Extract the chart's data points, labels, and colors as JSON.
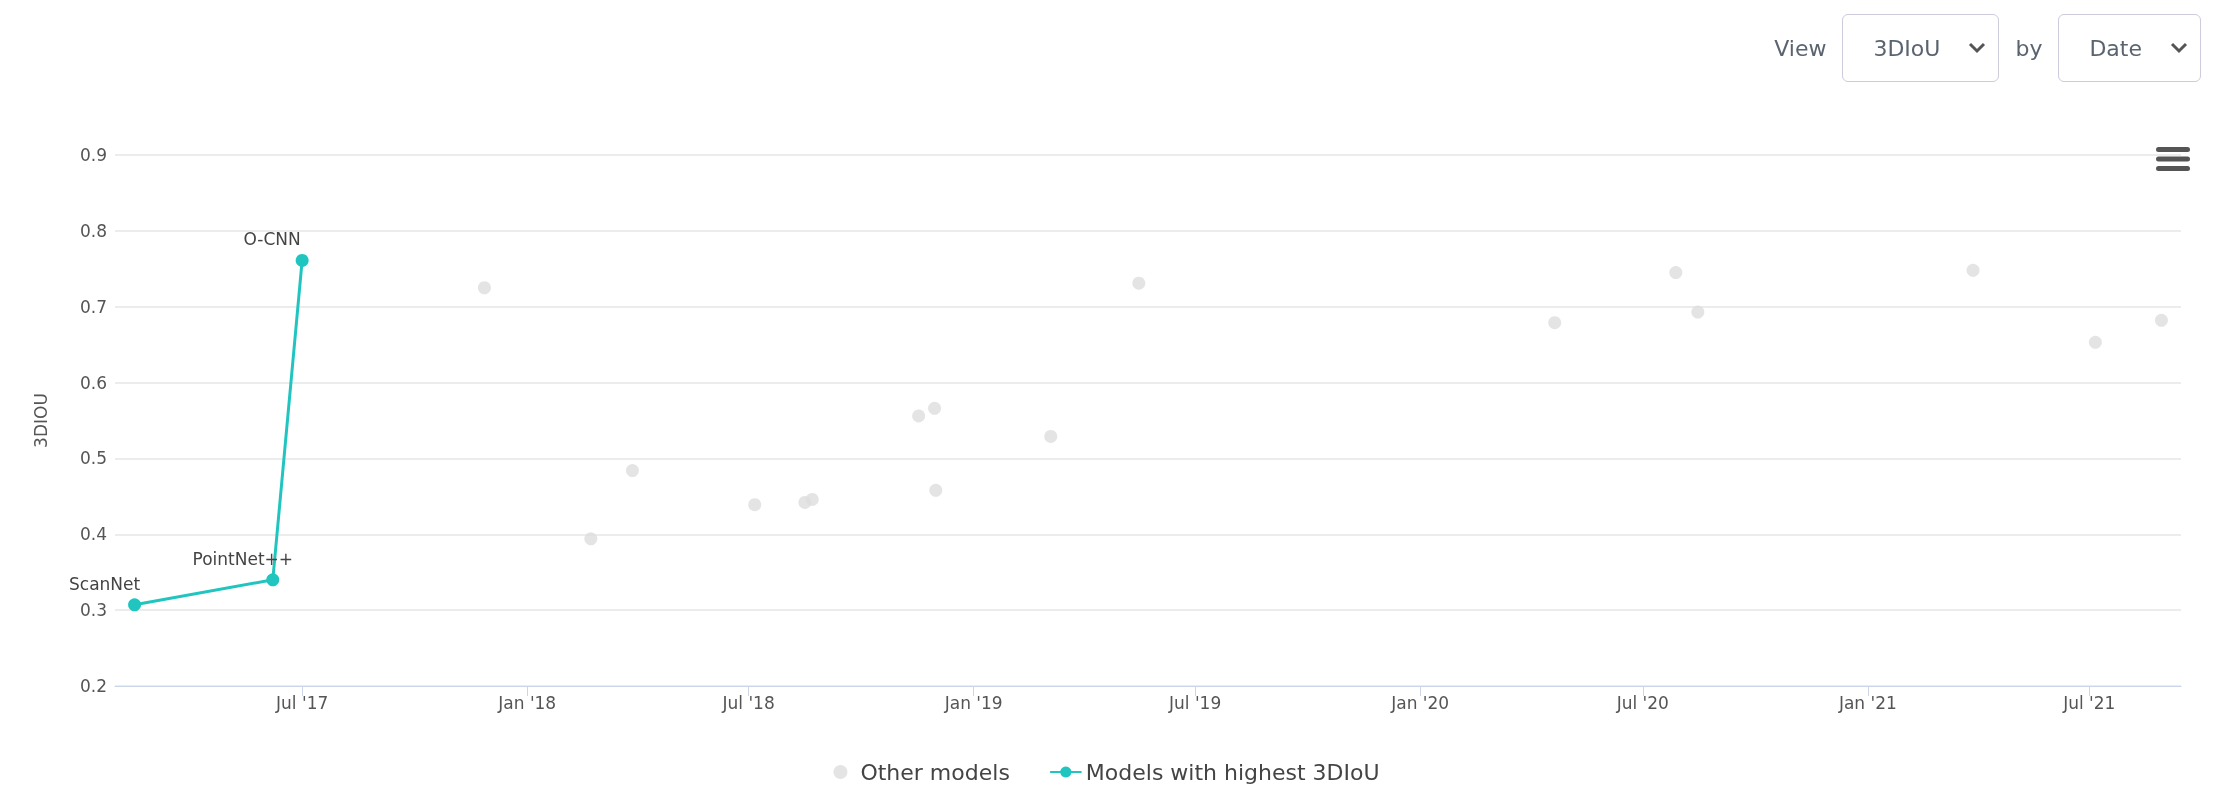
{
  "chart_data": {
    "type": "scatter",
    "ylabel": "3DIOU",
    "xlim": [
      "2017-01-29",
      "2021-09-14"
    ],
    "ylim": [
      0.2,
      0.9
    ],
    "yticks": [
      0.2,
      0.3,
      0.4,
      0.5,
      0.6,
      0.7,
      0.8,
      0.9
    ],
    "xticks": [
      {
        "value": "2017-07-01",
        "label": "Jul '17"
      },
      {
        "value": "2018-01-01",
        "label": "Jan '18"
      },
      {
        "value": "2018-07-01",
        "label": "Jul '18"
      },
      {
        "value": "2019-01-01",
        "label": "Jan '19"
      },
      {
        "value": "2019-07-01",
        "label": "Jul '19"
      },
      {
        "value": "2020-01-01",
        "label": "Jan '20"
      },
      {
        "value": "2020-07-01",
        "label": "Jul '20"
      },
      {
        "value": "2021-01-01",
        "label": "Jan '21"
      },
      {
        "value": "2021-07-01",
        "label": "Jul '21"
      }
    ],
    "grid": "y",
    "legend": "bottom",
    "marker": "circle",
    "series": [
      {
        "name": "Other models",
        "color": "#dddddd",
        "x": [
          "2017-11-27",
          "2018-02-22",
          "2018-03-28",
          "2018-07-06",
          "2018-08-16",
          "2018-08-22",
          "2018-11-17",
          "2018-11-30",
          "2018-12-01",
          "2019-03-05",
          "2019-05-16",
          "2020-04-20",
          "2020-07-28",
          "2020-08-15",
          "2021-03-28",
          "2021-07-06",
          "2021-08-29"
        ],
        "values": [
          0.725,
          0.394,
          0.484,
          0.439,
          0.442,
          0.446,
          0.556,
          0.566,
          0.458,
          0.529,
          0.731,
          0.679,
          0.745,
          0.693,
          0.748,
          0.653,
          0.682
        ]
      },
      {
        "name": "Models with highest 3DIoU",
        "type": "line",
        "color": "#21c5c0",
        "line_style": "solid",
        "x": [
          "2017-02-14",
          "2017-06-07",
          "2017-07-01"
        ],
        "values": [
          0.307,
          0.34,
          0.761
        ]
      }
    ],
    "annotations": [
      {
        "text": "ScanNet",
        "x": "2017-02-14",
        "y": 0.307
      },
      {
        "text": "PointNet++",
        "x": "2017-06-07",
        "y": 0.34
      },
      {
        "text": "O-CNN",
        "x": "2017-07-01",
        "y": 0.761
      },
      "View",
      "3DIoU",
      "by",
      "Date"
    ]
  }
}
